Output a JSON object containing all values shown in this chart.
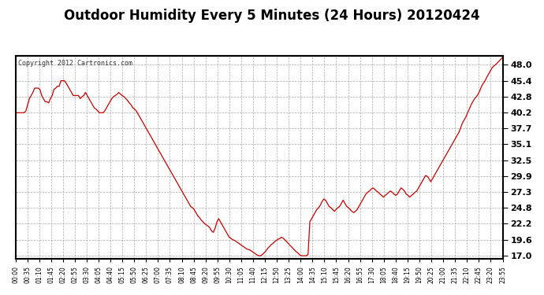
{
  "title": "Outdoor Humidity Every 5 Minutes (24 Hours) 20120424",
  "copyright": "Copyright 2012 Cartronics.com",
  "line_color": "#cc0000",
  "bg_color": "#ffffff",
  "plot_bg_color": "#ffffff",
  "grid_color": "#aaaaaa",
  "title_fontsize": 12,
  "yticks": [
    17.0,
    19.6,
    22.2,
    24.8,
    27.3,
    29.9,
    32.5,
    35.1,
    37.7,
    40.2,
    42.8,
    45.4,
    48.0
  ],
  "ylim": [
    16.5,
    49.5
  ],
  "humidity_data": [
    40.2,
    40.2,
    40.2,
    40.2,
    40.2,
    40.2,
    40.5,
    41.5,
    42.5,
    43.0,
    43.5,
    44.2,
    44.2,
    44.2,
    44.0,
    43.0,
    42.5,
    42.0,
    42.0,
    41.8,
    42.5,
    43.0,
    44.0,
    44.2,
    44.5,
    44.5,
    45.4,
    45.4,
    45.4,
    45.0,
    44.5,
    44.0,
    43.5,
    43.0,
    43.0,
    43.0,
    43.0,
    42.5,
    42.8,
    43.0,
    43.5,
    43.0,
    42.5,
    42.0,
    41.5,
    41.0,
    40.8,
    40.5,
    40.2,
    40.2,
    40.2,
    40.5,
    41.0,
    41.5,
    42.0,
    42.5,
    42.8,
    43.0,
    43.2,
    43.5,
    43.2,
    43.0,
    42.8,
    42.5,
    42.2,
    41.8,
    41.5,
    41.0,
    40.8,
    40.5,
    40.0,
    39.5,
    39.0,
    38.5,
    38.0,
    37.5,
    37.0,
    36.5,
    36.0,
    35.5,
    35.0,
    34.5,
    34.0,
    33.5,
    33.0,
    32.5,
    32.0,
    31.5,
    31.0,
    30.5,
    30.0,
    29.5,
    29.0,
    28.5,
    28.0,
    27.5,
    27.0,
    26.5,
    26.0,
    25.5,
    25.0,
    24.8,
    24.5,
    24.0,
    23.5,
    23.2,
    22.8,
    22.5,
    22.2,
    22.0,
    21.8,
    21.5,
    21.0,
    20.8,
    21.5,
    22.5,
    23.0,
    22.5,
    22.0,
    21.5,
    21.0,
    20.5,
    20.0,
    19.8,
    19.6,
    19.5,
    19.3,
    19.1,
    18.9,
    18.7,
    18.5,
    18.3,
    18.1,
    18.0,
    17.9,
    17.7,
    17.5,
    17.3,
    17.1,
    17.0,
    17.0,
    17.2,
    17.5,
    17.8,
    18.2,
    18.5,
    18.8,
    19.0,
    19.3,
    19.5,
    19.7,
    19.8,
    20.0,
    19.8,
    19.5,
    19.2,
    18.9,
    18.6,
    18.3,
    18.0,
    17.7,
    17.5,
    17.2,
    17.0,
    17.0,
    17.0,
    17.0,
    17.2,
    22.5,
    23.0,
    23.5,
    24.0,
    24.5,
    24.8,
    25.2,
    25.8,
    26.2,
    26.0,
    25.5,
    25.0,
    24.8,
    24.5,
    24.2,
    24.5,
    24.8,
    25.0,
    25.5,
    26.0,
    25.5,
    25.0,
    24.8,
    24.5,
    24.2,
    24.0,
    24.2,
    24.5,
    25.0,
    25.5,
    26.0,
    26.5,
    27.0,
    27.3,
    27.5,
    27.8,
    28.0,
    27.8,
    27.5,
    27.3,
    27.0,
    26.8,
    26.5,
    26.8,
    27.0,
    27.3,
    27.5,
    27.3,
    27.0,
    26.8,
    27.0,
    27.5,
    28.0,
    27.8,
    27.5,
    27.0,
    26.8,
    26.5,
    26.8,
    27.0,
    27.3,
    27.5,
    28.0,
    28.5,
    29.0,
    29.5,
    30.0,
    29.9,
    29.5,
    29.0,
    29.5,
    30.0,
    30.5,
    31.0,
    31.5,
    32.0,
    32.5,
    33.0,
    33.5,
    34.0,
    34.5,
    35.0,
    35.5,
    36.0,
    36.5,
    37.0,
    37.7,
    38.5,
    39.0,
    39.5,
    40.2,
    40.8,
    41.5,
    42.0,
    42.5,
    42.8,
    43.2,
    43.8,
    44.5,
    45.0,
    45.4,
    46.0,
    46.5,
    47.0,
    47.5,
    47.8,
    48.0,
    48.3,
    48.6,
    48.9,
    49.2
  ],
  "xtick_labels": [
    "00:00",
    "00:35",
    "01:10",
    "01:45",
    "02:20",
    "02:55",
    "03:30",
    "04:05",
    "04:40",
    "05:15",
    "05:50",
    "06:25",
    "07:00",
    "07:35",
    "08:10",
    "08:45",
    "09:20",
    "09:55",
    "10:30",
    "11:05",
    "11:40",
    "12:15",
    "12:50",
    "13:25",
    "14:00",
    "14:35",
    "15:10",
    "15:45",
    "16:20",
    "16:55",
    "17:30",
    "18:05",
    "18:40",
    "19:15",
    "19:50",
    "20:25",
    "21:00",
    "21:35",
    "22:10",
    "22:45",
    "23:20",
    "23:55"
  ]
}
